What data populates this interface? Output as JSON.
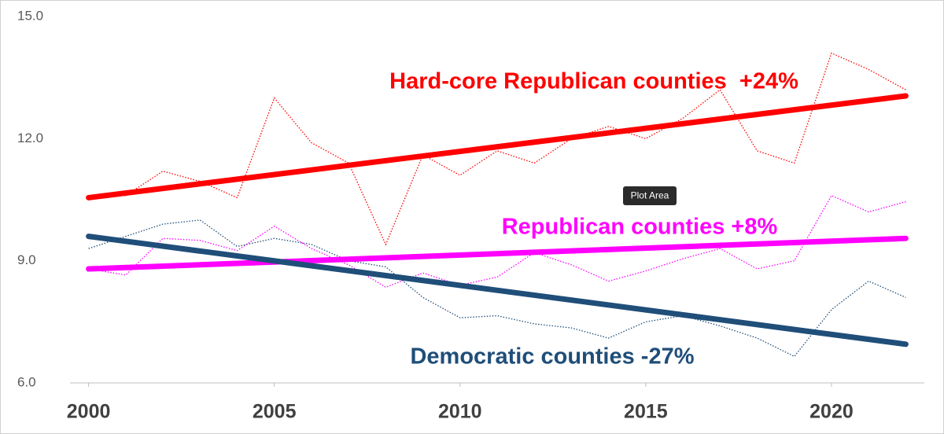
{
  "chart_data": {
    "type": "line",
    "x": [
      2000,
      2001,
      2002,
      2003,
      2004,
      2005,
      2006,
      2007,
      2008,
      2009,
      2010,
      2011,
      2012,
      2013,
      2014,
      2015,
      2016,
      2017,
      2018,
      2019,
      2020,
      2021,
      2022
    ],
    "series": [
      {
        "color": "#ff0000",
        "dash": true,
        "values": [
          10.6,
          10.6,
          11.2,
          10.95,
          10.55,
          13.0,
          11.9,
          11.4,
          9.4,
          11.6,
          11.1,
          11.7,
          11.4,
          12.0,
          12.3,
          12.0,
          12.5,
          13.2,
          11.7,
          11.4,
          14.1,
          13.7,
          13.2
        ]
      },
      {
        "color": "#ff00ff",
        "dash": true,
        "values": [
          8.8,
          8.65,
          9.55,
          9.5,
          9.25,
          9.85,
          9.3,
          8.9,
          8.35,
          8.7,
          8.4,
          8.6,
          9.2,
          8.9,
          8.5,
          8.75,
          9.05,
          9.3,
          8.8,
          9.0,
          10.6,
          10.2,
          10.45
        ]
      },
      {
        "color": "#1f4e79",
        "dash": true,
        "values": [
          9.3,
          9.6,
          9.9,
          10.0,
          9.35,
          9.55,
          9.4,
          9.0,
          8.85,
          8.1,
          7.6,
          7.65,
          7.45,
          7.35,
          7.1,
          7.5,
          7.65,
          7.4,
          7.1,
          6.65,
          7.8,
          8.5,
          8.1
        ]
      },
      {
        "name": "Hard-core Republican counties  +24%",
        "color": "#ff0000",
        "dash": false,
        "x": [
          2000,
          2022
        ],
        "values": [
          10.55,
          13.05
        ]
      },
      {
        "name": "Republican counties +8%",
        "color": "#ff00ff",
        "dash": false,
        "x": [
          2000,
          2022
        ],
        "values": [
          8.8,
          9.55
        ]
      },
      {
        "name": "Democratic counties -27%",
        "color": "#1f4e79",
        "dash": false,
        "x": [
          2000,
          2022
        ],
        "values": [
          9.6,
          6.95
        ]
      }
    ],
    "xlim": [
      1999.5,
      2022.5
    ],
    "xticks": [
      2000,
      2005,
      2010,
      2015,
      2020
    ],
    "ylim": [
      6,
      15
    ],
    "yticks": [
      {
        "value": 6,
        "label": "6.0"
      },
      {
        "value": 9,
        "label": "9.0"
      },
      {
        "value": 12,
        "label": "12.0"
      },
      {
        "value": 15,
        "label": "15.0"
      }
    ],
    "grid": false,
    "tooltip": "Plot Area"
  }
}
